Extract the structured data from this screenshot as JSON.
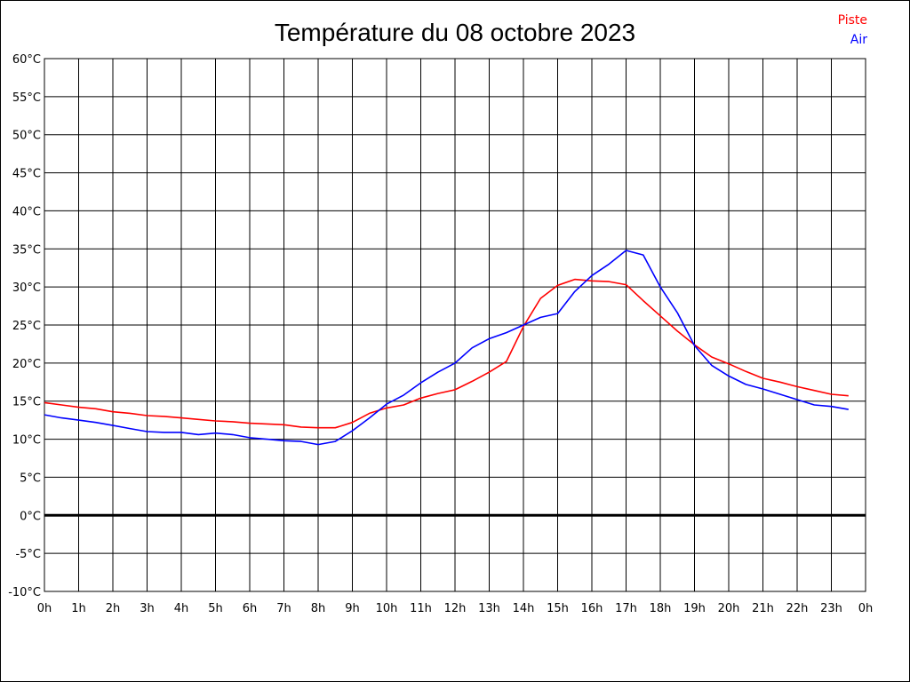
{
  "chart_data": {
    "type": "line",
    "title": "Température du 08 octobre 2023",
    "x_tick_labels": [
      "0h",
      "1h",
      "2h",
      "3h",
      "4h",
      "5h",
      "6h",
      "7h",
      "8h",
      "9h",
      "10h",
      "11h",
      "12h",
      "13h",
      "14h",
      "15h",
      "16h",
      "17h",
      "18h",
      "19h",
      "20h",
      "21h",
      "22h",
      "23h",
      "0h"
    ],
    "y_tick_labels": [
      "60°C",
      "55°C",
      "50°C",
      "45°C",
      "40°C",
      "35°C",
      "30°C",
      "25°C",
      "20°C",
      "15°C",
      "10°C",
      "5°C",
      "0°C",
      "-5°C",
      "-10°C"
    ],
    "xlim": [
      0,
      24
    ],
    "ylim": [
      -10,
      60
    ],
    "grid": true,
    "legend_position": "top-right",
    "x": [
      0,
      0.5,
      1,
      1.5,
      2,
      2.5,
      3,
      3.5,
      4,
      4.5,
      5,
      5.5,
      6,
      6.5,
      7,
      7.5,
      8,
      8.5,
      9,
      9.5,
      10,
      10.5,
      11,
      11.5,
      12,
      12.5,
      13,
      13.5,
      14,
      14.5,
      15,
      15.5,
      16,
      16.5,
      17,
      17.5,
      18,
      18.5,
      19,
      19.5,
      20,
      20.5,
      21,
      21.5,
      22,
      22.5,
      23,
      23.5
    ],
    "series": [
      {
        "name": "Piste",
        "color": "#ff0000",
        "values": [
          14.8,
          14.5,
          14.2,
          14.0,
          13.6,
          13.4,
          13.1,
          13.0,
          12.8,
          12.6,
          12.4,
          12.3,
          12.1,
          12.0,
          11.9,
          11.6,
          11.5,
          11.5,
          12.2,
          13.4,
          14.1,
          14.5,
          15.4,
          16.0,
          16.5,
          17.6,
          18.8,
          20.2,
          24.8,
          28.5,
          30.2,
          31.0,
          30.8,
          30.7,
          30.3,
          28.2,
          26.2,
          24.2,
          22.4,
          20.8,
          19.9,
          18.9,
          18.0,
          17.5,
          16.9,
          16.4,
          15.9,
          15.7
        ]
      },
      {
        "name": "Air",
        "color": "#0000ff",
        "values": [
          13.2,
          12.8,
          12.5,
          12.2,
          11.8,
          11.4,
          11.0,
          10.9,
          10.9,
          10.6,
          10.8,
          10.6,
          10.2,
          10.0,
          9.8,
          9.7,
          9.3,
          9.7,
          11.1,
          12.8,
          14.6,
          15.8,
          17.4,
          18.8,
          20.0,
          22.0,
          23.2,
          24.0,
          25.0,
          26.0,
          26.5,
          29.4,
          31.5,
          33.0,
          34.8,
          34.2,
          30.0,
          26.6,
          22.3,
          19.7,
          18.3,
          17.2,
          16.6,
          15.9,
          15.2,
          14.5,
          14.3,
          13.9
        ]
      }
    ]
  }
}
